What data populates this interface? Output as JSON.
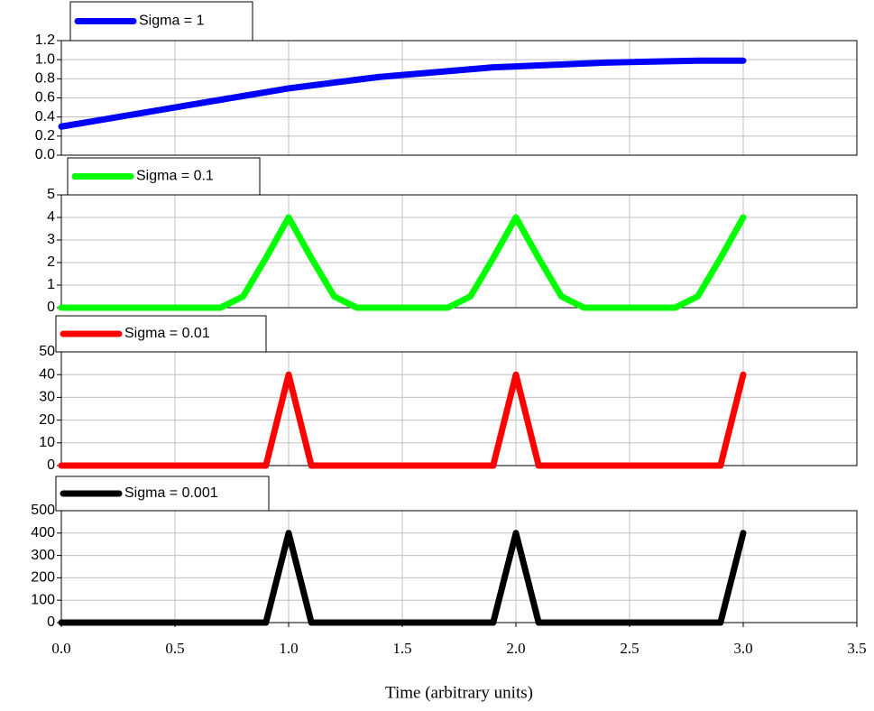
{
  "chart_data": [
    {
      "type": "line",
      "x": [
        0,
        0.1,
        0.2,
        0.3,
        0.4,
        0.5,
        0.6,
        0.7,
        0.8,
        0.9,
        1.0,
        1.1,
        1.2,
        1.3,
        1.4,
        1.5,
        1.6,
        1.7,
        1.8,
        1.9,
        2.0,
        2.1,
        2.2,
        2.3,
        2.4,
        2.5,
        2.6,
        2.7,
        2.8,
        2.9,
        3.0
      ],
      "series": [
        {
          "name": "Sigma = 1",
          "color": "#0000ff",
          "values": [
            0.3,
            0.34,
            0.38,
            0.42,
            0.46,
            0.5,
            0.54,
            0.58,
            0.62,
            0.66,
            0.7,
            0.73,
            0.76,
            0.79,
            0.82,
            0.84,
            0.86,
            0.88,
            0.9,
            0.92,
            0.93,
            0.94,
            0.95,
            0.96,
            0.97,
            0.975,
            0.98,
            0.985,
            0.99,
            0.99,
            0.99
          ]
        }
      ],
      "xlim": [
        0,
        3.5
      ],
      "xticks": [
        0,
        0.5,
        1,
        1.5,
        2,
        2.5,
        3,
        3.5
      ],
      "ylim": [
        0,
        1.2
      ],
      "yticks": [
        {
          "value": 0,
          "label": "0.0"
        },
        {
          "value": 0.2,
          "label": "0.2"
        },
        {
          "value": 0.4,
          "label": "0.4"
        },
        {
          "value": 0.6,
          "label": "0.6"
        },
        {
          "value": 0.8,
          "label": "0.8"
        },
        {
          "value": 1,
          "label": "1.0"
        },
        {
          "value": 1.2,
          "label": "1.2"
        }
      ],
      "grid": true
    },
    {
      "type": "line",
      "x": [
        0,
        0.1,
        0.2,
        0.3,
        0.4,
        0.5,
        0.6,
        0.7,
        0.8,
        0.9,
        1.0,
        1.1,
        1.2,
        1.3,
        1.4,
        1.5,
        1.6,
        1.7,
        1.8,
        1.9,
        2.0,
        2.1,
        2.2,
        2.3,
        2.4,
        2.5,
        2.6,
        2.7,
        2.8,
        2.9,
        3.0
      ],
      "series": [
        {
          "name": "Sigma = 0.1",
          "color": "#00ff00",
          "values": [
            0,
            0,
            0,
            0,
            0,
            0,
            0,
            0,
            0.5,
            2.2,
            4,
            2.2,
            0.5,
            0,
            0,
            0,
            0,
            0,
            0.5,
            2.2,
            4,
            2.2,
            0.5,
            0,
            0,
            0,
            0,
            0,
            0.5,
            2.2,
            4
          ]
        }
      ],
      "xlim": [
        0,
        3.5
      ],
      "xticks": [
        0,
        0.5,
        1,
        1.5,
        2,
        2.5,
        3,
        3.5
      ],
      "ylim": [
        0,
        5
      ],
      "yticks": [
        0,
        1,
        2,
        3,
        4,
        5
      ],
      "grid": true
    },
    {
      "type": "line",
      "x": [
        0,
        0.1,
        0.2,
        0.3,
        0.4,
        0.5,
        0.6,
        0.7,
        0.8,
        0.9,
        1.0,
        1.1,
        1.2,
        1.3,
        1.4,
        1.5,
        1.6,
        1.7,
        1.8,
        1.9,
        2.0,
        2.1,
        2.2,
        2.3,
        2.4,
        2.5,
        2.6,
        2.7,
        2.8,
        2.9,
        3.0
      ],
      "series": [
        {
          "name": "Sigma = 0.01",
          "color": "#ff0000",
          "values": [
            0,
            0,
            0,
            0,
            0,
            0,
            0,
            0,
            0,
            0,
            40,
            0,
            0,
            0,
            0,
            0,
            0,
            0,
            0,
            0,
            40,
            0,
            0,
            0,
            0,
            0,
            0,
            0,
            0,
            0,
            40
          ]
        }
      ],
      "xlim": [
        0,
        3.5
      ],
      "xticks": [
        0,
        0.5,
        1,
        1.5,
        2,
        2.5,
        3,
        3.5
      ],
      "ylim": [
        0,
        50
      ],
      "yticks": [
        0,
        10,
        20,
        30,
        40,
        50
      ],
      "grid": true
    },
    {
      "type": "line",
      "x": [
        0,
        0.1,
        0.2,
        0.3,
        0.4,
        0.5,
        0.6,
        0.7,
        0.8,
        0.9,
        1.0,
        1.1,
        1.2,
        1.3,
        1.4,
        1.5,
        1.6,
        1.7,
        1.8,
        1.9,
        2.0,
        2.1,
        2.2,
        2.3,
        2.4,
        2.5,
        2.6,
        2.7,
        2.8,
        2.9,
        3.0
      ],
      "series": [
        {
          "name": "Sigma = 0.001",
          "color": "#000000",
          "values": [
            0,
            0,
            0,
            0,
            0,
            0,
            0,
            0,
            0,
            0,
            400,
            0,
            0,
            0,
            0,
            0,
            0,
            0,
            0,
            0,
            400,
            0,
            0,
            0,
            0,
            0,
            0,
            0,
            0,
            0,
            400
          ]
        }
      ],
      "xlim": [
        0,
        3.5
      ],
      "xticks": [
        {
          "value": 0,
          "label": "0.0"
        },
        {
          "value": 0.5,
          "label": "0.5"
        },
        {
          "value": 1,
          "label": "1.0"
        },
        {
          "value": 1.5,
          "label": "1.5"
        },
        {
          "value": 2,
          "label": "2.0"
        },
        {
          "value": 2.5,
          "label": "2.5"
        },
        {
          "value": 3,
          "label": "3.0"
        },
        {
          "value": 3.5,
          "label": "3.5"
        }
      ],
      "ylim": [
        0,
        500
      ],
      "yticks": [
        0,
        100,
        200,
        300,
        400,
        500
      ],
      "grid": true,
      "xlabel": "Time (arbitrary units)"
    }
  ]
}
